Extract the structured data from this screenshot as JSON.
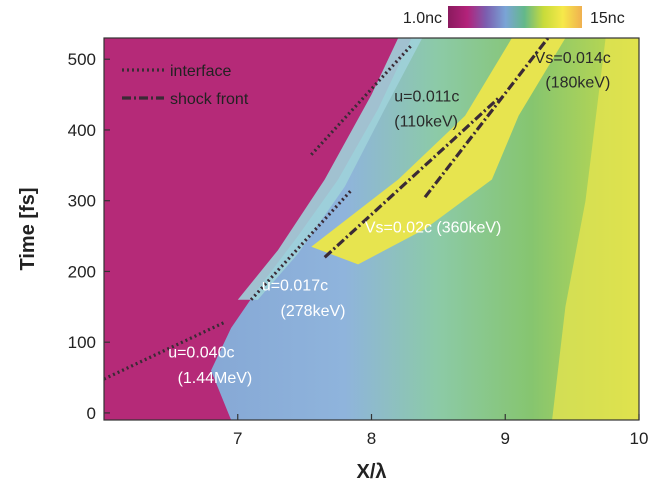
{
  "chart_data": {
    "type": "heatmap",
    "xlabel": "X/λ",
    "ylabel": "Time [fs]",
    "xlim": [
      6.0,
      10.0
    ],
    "ylim": [
      -10,
      530
    ],
    "xticks": [
      7,
      8,
      9,
      10
    ],
    "yticks": [
      0,
      100,
      200,
      300,
      400,
      500
    ],
    "colorbar": {
      "min_label": "1.0nc",
      "max_label": "15nc",
      "colors": [
        "#8a1a5e",
        "#b3227a",
        "#7b5fb0",
        "#7aa4d6",
        "#63b88a",
        "#c8db3a",
        "#f6e94a",
        "#f0b050"
      ],
      "position": "top-right"
    },
    "region_colors": {
      "background": "#ffffff",
      "magenta": "#b52a78",
      "blue": "#88aed8",
      "cyan": "#9fd2d9",
      "green": "#7cc07a",
      "yellow": "#e7e44f"
    },
    "legend": {
      "placement": "top-left",
      "entries": [
        {
          "label": "interface",
          "style": "dotted"
        },
        {
          "label": "shock front",
          "style": "dash-dot"
        }
      ]
    },
    "interface_boundary": [
      {
        "x": 6.0,
        "y": 120
      },
      {
        "x": 6.3,
        "y": 155
      },
      {
        "x": 6.6,
        "y": 160
      },
      {
        "x": 6.85,
        "y": 150
      },
      {
        "x": 7.0,
        "y": 185
      },
      {
        "x": 7.15,
        "y": 245
      },
      {
        "x": 7.3,
        "y": 305
      },
      {
        "x": 7.4,
        "y": 360
      },
      {
        "x": 7.55,
        "y": 420
      },
      {
        "x": 7.7,
        "y": 460
      },
      {
        "x": 7.85,
        "y": 495
      },
      {
        "x": 8.0,
        "y": 530
      }
    ],
    "series": [
      {
        "name": "interface",
        "style": "dotted",
        "points": [
          [
            6.0,
            48
          ],
          [
            6.9,
            128
          ]
        ]
      },
      {
        "name": "interface",
        "style": "dotted",
        "points": [
          [
            7.1,
            160
          ],
          [
            7.85,
            315
          ]
        ]
      },
      {
        "name": "interface",
        "style": "dotted",
        "points": [
          [
            7.55,
            365
          ],
          [
            8.3,
            520
          ]
        ]
      },
      {
        "name": "shock front",
        "style": "dash-dot",
        "points": [
          [
            7.65,
            220
          ],
          [
            8.95,
            445
          ]
        ]
      },
      {
        "name": "shock front",
        "style": "dash-dot",
        "points": [
          [
            8.4,
            305
          ],
          [
            9.32,
            530
          ]
        ]
      }
    ],
    "annotations": [
      {
        "text": "u=0.040c",
        "x": 6.48,
        "y": 78,
        "color": "white"
      },
      {
        "text": "(1.44MeV)",
        "x": 6.55,
        "y": 42,
        "color": "white"
      },
      {
        "text": "u=0.017c",
        "x": 7.18,
        "y": 173,
        "color": "white"
      },
      {
        "text": "(278keV)",
        "x": 7.32,
        "y": 137,
        "color": "white"
      },
      {
        "text": "Vs=0.02c (360keV)",
        "x": 7.95,
        "y": 255,
        "color": "white"
      },
      {
        "text": "u=0.011c",
        "x": 8.17,
        "y": 440,
        "color": "dark"
      },
      {
        "text": "(110keV)",
        "x": 8.17,
        "y": 405,
        "color": "dark"
      },
      {
        "text": "Vs=0.014c",
        "x": 9.22,
        "y": 495,
        "color": "dark"
      },
      {
        "text": "(180keV)",
        "x": 9.3,
        "y": 460,
        "color": "dark"
      }
    ]
  }
}
